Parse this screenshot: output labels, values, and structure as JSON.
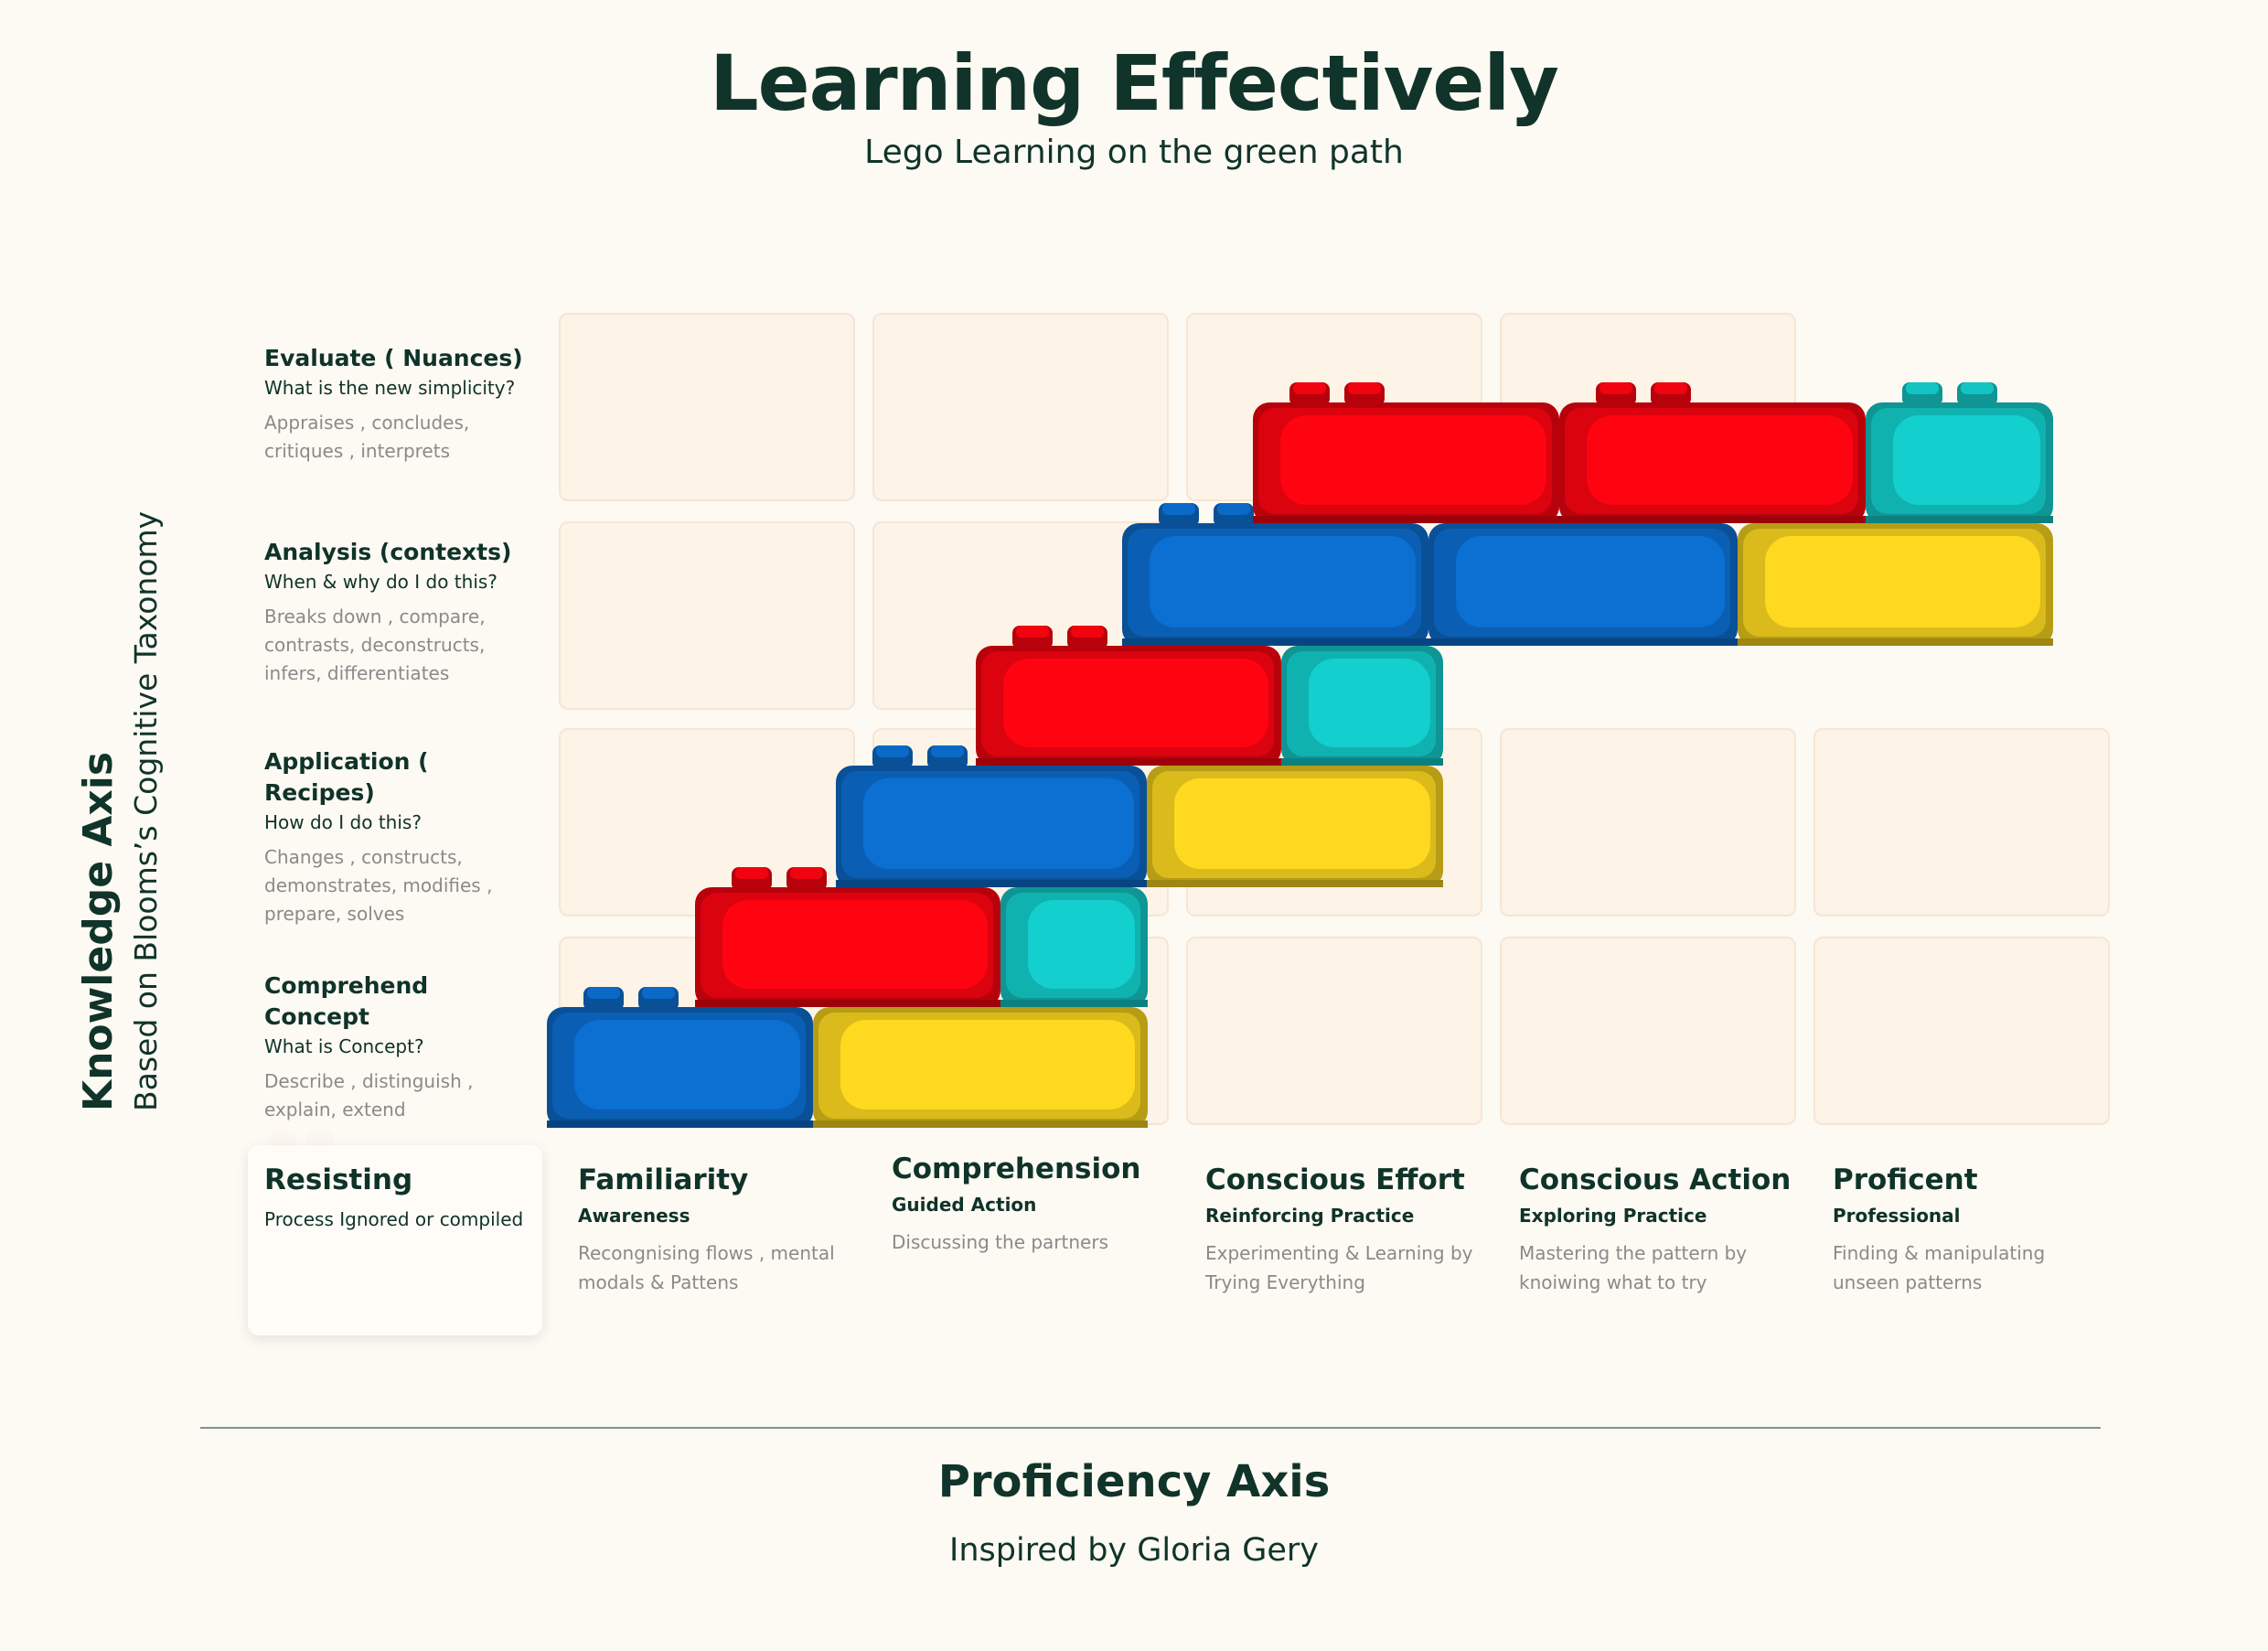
{
  "header": {
    "title": "Learning Effectively",
    "subtitle": "Lego Learning on the green path"
  },
  "knowledge_axis": {
    "title": "Knowledge Axis",
    "subtitle": "Based on Blooms’s Cognitive Taxonomy",
    "levels": [
      {
        "heading": "Evaluate ( Nuances)",
        "question": "What is the new simplicity?",
        "lines": [
          "Appraises , concludes,",
          "critiques , interprets"
        ]
      },
      {
        "heading": "Analysis (contexts)",
        "question": "When & why do I do this?",
        "lines": [
          "Breaks down , compare,",
          "contrasts, deconstructs,",
          "infers, differentiates"
        ]
      },
      {
        "heading": "Application ( Recipes)",
        "question": "How do I do this?",
        "lines": [
          "Changes , constructs,",
          "demonstrates, modifies ,",
          "prepare, solves"
        ]
      },
      {
        "heading": "Comprehend Concept",
        "question": "What is Concept?",
        "lines": [
          "Describe , distinguish ,",
          "explain, extend"
        ]
      }
    ]
  },
  "proficiency_axis": {
    "title": "Proficiency  Axis",
    "subtitle": "Inspired by Gloria Gery",
    "stages": [
      {
        "heading": "Resisting",
        "sub": "Process Ignored or compiled",
        "lines": []
      },
      {
        "heading": "Familiarity",
        "sub": "Awareness",
        "lines": [
          "Recongnising flows , mental",
          "modals & Pattens"
        ]
      },
      {
        "heading": "Comprehension",
        "sub": "Guided Action",
        "lines": [
          "Discussing the partners"
        ]
      },
      {
        "heading": "Conscious Effort",
        "sub": "Reinforcing Practice",
        "lines": [
          "Experimenting & Learning by",
          "Trying Everything"
        ]
      },
      {
        "heading": "Conscious Action",
        "sub": "Exploring Practice",
        "lines": [
          "Mastering the pattern by",
          "knoiwing what to try"
        ]
      },
      {
        "heading": "Proficent",
        "sub": "Professional",
        "lines": [
          "Finding & manipulating",
          "unseen patterns"
        ]
      }
    ]
  },
  "brick_colors": {
    "red": "#fe0310",
    "blue": "#0c6fd2",
    "yellow": "#fed91f",
    "teal": "#13cfcd"
  }
}
